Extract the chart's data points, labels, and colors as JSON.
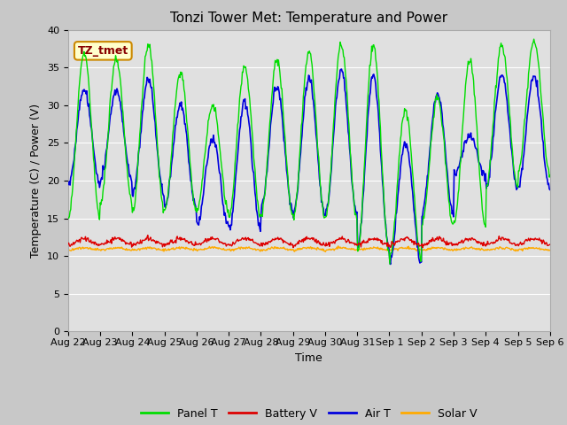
{
  "title": "Tonzi Tower Met: Temperature and Power",
  "xlabel": "Time",
  "ylabel": "Temperature (C) / Power (V)",
  "ylim": [
    0,
    40
  ],
  "yticks": [
    0,
    5,
    10,
    15,
    20,
    25,
    30,
    35,
    40
  ],
  "x_labels": [
    "Aug 22",
    "Aug 23",
    "Aug 24",
    "Aug 25",
    "Aug 26",
    "Aug 27",
    "Aug 28",
    "Aug 29",
    "Aug 30",
    "Aug 31",
    "Sep 1",
    "Sep 2",
    "Sep 3",
    "Sep 4",
    "Sep 5",
    "Sep 6"
  ],
  "legend_labels": [
    "Panel T",
    "Battery V",
    "Air T",
    "Solar V"
  ],
  "legend_colors": [
    "#00dd00",
    "#dd0000",
    "#0000dd",
    "#ffaa00"
  ],
  "line_colors": {
    "panel_t": "#00dd00",
    "battery_v": "#dd0000",
    "air_t": "#0000dd",
    "solar_v": "#ffaa00"
  },
  "annotation_text": "TZ_tmet",
  "annotation_bg": "#ffffcc",
  "annotation_border": "#cc8800",
  "annotation_text_color": "#880000",
  "fig_bg_color": "#c8c8c8",
  "plot_bg_color": "#e0e0e0",
  "grid_color": "#ffffff",
  "title_fontsize": 11,
  "axis_fontsize": 9,
  "tick_fontsize": 8,
  "legend_fontsize": 9,
  "n_days": 15,
  "pts_per_day": 48,
  "panel_peaks": [
    37,
    36,
    38,
    34.5,
    30,
    35,
    36,
    37,
    38,
    38,
    29.5,
    31,
    36,
    38,
    38.5
  ],
  "panel_troughs": [
    15,
    17,
    16,
    16,
    16,
    15,
    15.5,
    15,
    15,
    10.5,
    9.5,
    14,
    14,
    19,
    21
  ],
  "air_peaks": [
    32,
    32,
    33.5,
    30,
    25.5,
    30.5,
    32.5,
    33.5,
    34.5,
    34,
    25,
    31.5,
    26,
    34,
    34
  ],
  "air_troughs": [
    19.5,
    20,
    18,
    16.5,
    14,
    13.5,
    16,
    15.5,
    15.5,
    11,
    9,
    15.5,
    20.5,
    19,
    19
  ]
}
